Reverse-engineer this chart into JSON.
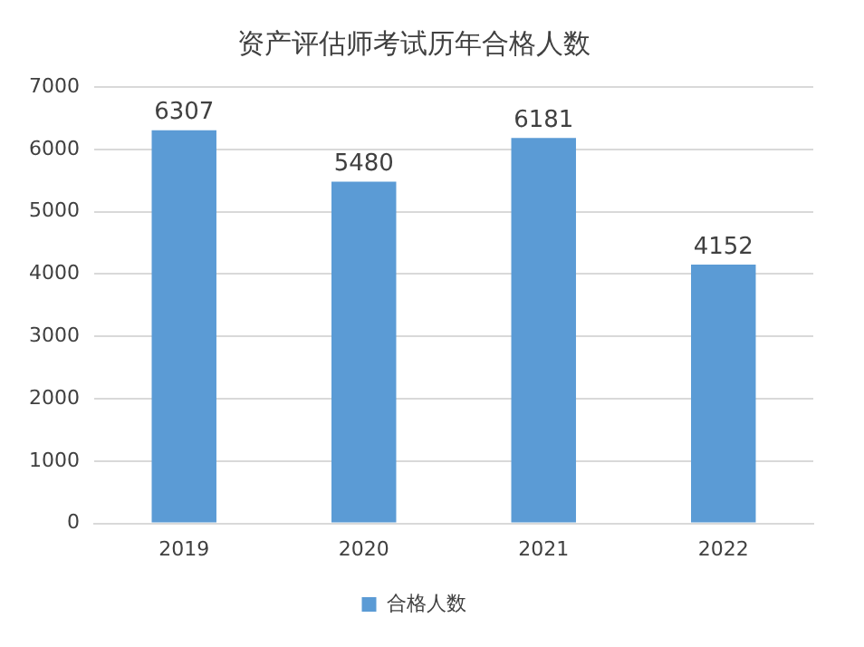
{
  "chart_data": {
    "type": "bar",
    "title": "资产评估师考试历年合格人数",
    "categories": [
      "2019",
      "2020",
      "2021",
      "2022"
    ],
    "series": [
      {
        "name": "合格人数",
        "color": "#5b9bd5",
        "values": [
          6307,
          5480,
          6181,
          4152
        ]
      }
    ],
    "ylim": [
      0,
      7000
    ],
    "yticks": [
      0,
      1000,
      2000,
      3000,
      4000,
      5000,
      6000,
      7000
    ],
    "grid": "y",
    "legend": "bottom",
    "data_labels": true
  }
}
